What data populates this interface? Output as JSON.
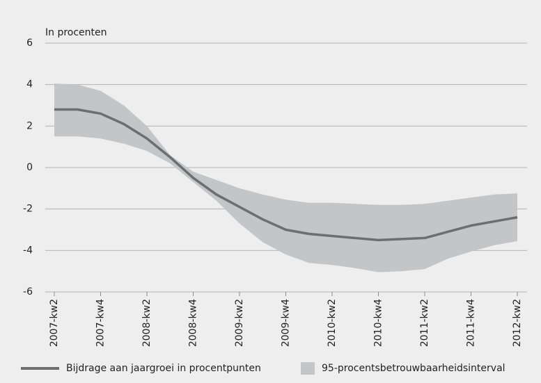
{
  "chart_data": {
    "type": "line",
    "ylabel": "In procenten",
    "categories": [
      "2007-kw2",
      null,
      "2007-kw4",
      null,
      "2008-kw2",
      null,
      "2008-kw4",
      null,
      "2009-kw2",
      null,
      "2009-kw4",
      null,
      "2010-kw2",
      null,
      "2010-kw4",
      null,
      "2011-kw2",
      null,
      "2011-kw4",
      null,
      "2012-kw2"
    ],
    "series": [
      {
        "name": "Bijdrage aan jaargroei in procentpunten",
        "color": "#6d6e70",
        "values": [
          2.8,
          2.8,
          2.6,
          2.1,
          1.4,
          0.5,
          -0.5,
          -1.3,
          -1.9,
          -2.5,
          -3.0,
          -3.2,
          -3.3,
          -3.4,
          -3.5,
          -3.45,
          -3.4,
          -3.1,
          -2.8,
          -2.6,
          -2.4
        ]
      }
    ],
    "band": {
      "name": "95-procentsbetrouwbaarheidsinterval",
      "color": "#c4c5c7",
      "upper": [
        4.05,
        4.0,
        3.7,
        3.0,
        2.0,
        0.6,
        -0.2,
        -0.6,
        -1.0,
        -1.3,
        -1.55,
        -1.7,
        -1.7,
        -1.75,
        -1.8,
        -1.8,
        -1.75,
        -1.6,
        -1.45,
        -1.3,
        -1.25
      ],
      "lower": [
        1.5,
        1.5,
        1.4,
        1.15,
        0.8,
        0.2,
        -0.7,
        -1.6,
        -2.7,
        -3.6,
        -4.2,
        -4.6,
        -4.7,
        -4.85,
        -5.05,
        -5.0,
        -4.9,
        -4.4,
        -4.05,
        -3.75,
        -3.55
      ]
    },
    "ylim": [
      -6,
      6
    ],
    "yticks": [
      -6,
      -4,
      -2,
      0,
      2,
      4,
      6
    ],
    "grid": true
  }
}
